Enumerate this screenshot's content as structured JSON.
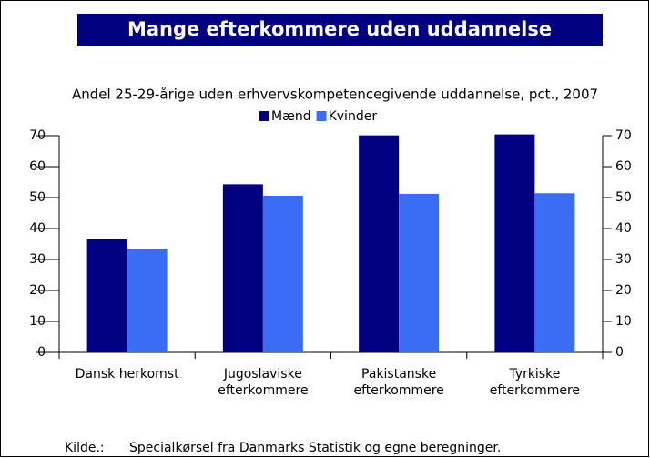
{
  "chart_data": {
    "type": "bar",
    "title": "Mange efterkommere uden uddannelse",
    "subtitle": "Andel 25-29-årige uden erhvervskompetencegivende uddannelse, pct., 2007",
    "categories": [
      "Dansk herkomst",
      "Jugoslaviske\nefterkommere",
      "Pakistanske\nefterkommere",
      "Tyrkiske\nefterkommere"
    ],
    "series": [
      {
        "name": "Mænd",
        "color": "#000080",
        "values": [
          36.7,
          54.3,
          70.1,
          70.4
        ]
      },
      {
        "name": "Kvinder",
        "color": "#3a6cf5",
        "values": [
          33.5,
          50.6,
          51.2,
          51.4
        ]
      }
    ],
    "ylim": [
      0,
      70
    ],
    "yticks": [
      0,
      10,
      20,
      30,
      40,
      50,
      60,
      70
    ],
    "y2lim": [
      0,
      70
    ],
    "y2ticks": [
      0,
      10,
      20,
      30,
      40,
      50,
      60,
      70
    ],
    "source_label": "Kilde.:",
    "source": "Specialkørsel fra Danmarks Statistik og egne beregninger."
  }
}
